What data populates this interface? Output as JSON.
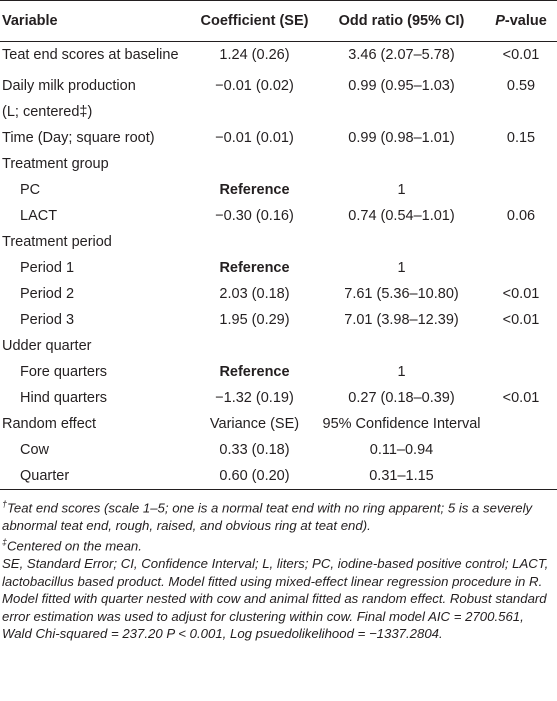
{
  "header": {
    "variable": "Variable",
    "coefficient": "Coefficient (SE)",
    "odds_ratio": "Odd ratio (95% CI)",
    "p_italic": "P",
    "p_rest": "-value"
  },
  "rows": {
    "r1": {
      "label": "Teat end scores at baseline",
      "coef": "1.24 (0.26)",
      "or": "3.46 (2.07–5.78)",
      "p": "<0.01"
    },
    "r2": {
      "label_line1": "Daily milk production",
      "label_line2": "(L; centered‡)",
      "coef": "−0.01 (0.02)",
      "or": "0.99 (0.95–1.03)",
      "p": "0.59"
    },
    "r3": {
      "label": "Time (Day; square root)",
      "coef": "−0.01 (0.01)",
      "or": "0.99 (0.98–1.01)",
      "p": "0.15"
    },
    "r4": {
      "label": "Treatment group"
    },
    "r5": {
      "label": "PC",
      "coef": "Reference",
      "or": "1"
    },
    "r6": {
      "label": "LACT",
      "coef": "−0.30 (0.16)",
      "or": "0.74 (0.54–1.01)",
      "p": "0.06"
    },
    "r7": {
      "label": "Treatment period"
    },
    "r8": {
      "label": "Period 1",
      "coef": "Reference",
      "or": "1"
    },
    "r9": {
      "label": "Period 2",
      "coef": "2.03 (0.18)",
      "or": "7.61 (5.36–10.80)",
      "p": "<0.01"
    },
    "r10": {
      "label": "Period 3",
      "coef": "1.95 (0.29)",
      "or": "7.01 (3.98–12.39)",
      "p": "<0.01"
    },
    "r11": {
      "label": "Udder quarter"
    },
    "r12": {
      "label": "Fore quarters",
      "coef": "Reference",
      "or": "1"
    },
    "r13": {
      "label": "Hind quarters",
      "coef": "−1.32 (0.19)",
      "or": "0.27 (0.18–0.39)",
      "p": "<0.01"
    },
    "r14": {
      "label": "Random effect",
      "coef": "Variance (SE)",
      "or": "95% Confidence Interval"
    },
    "r15": {
      "label": "Cow",
      "coef": "0.33 (0.18)",
      "or": "0.11–0.94"
    },
    "r16": {
      "label": "Quarter",
      "coef": "0.60 (0.20)",
      "or": "0.31–1.15"
    }
  },
  "footnotes": {
    "dagger_symbol": "†",
    "dagger_text": "Teat end scores (scale 1–5; one is a normal teat end with no ring apparent; 5 is a severely abnormal teat end, rough, raised, and obvious ring at teat end).",
    "ddagger_symbol": "‡",
    "ddagger_text": "Centered on the mean.",
    "abbrev_text": "SE, Standard Error; CI, Confidence Interval; L, liters; PC, iodine-based positive control; LACT, lactobacillus based product. Model fitted using mixed-effect linear regression procedure in R. Model fitted with quarter nested with cow and animal fitted as random effect. Robust standard error estimation was used to adjust for clustering within cow. Final model AIC = 2700.561, Wald Chi-squared = 237.20 P < 0.001, Log psuedolikelihood = −1337.2804."
  }
}
